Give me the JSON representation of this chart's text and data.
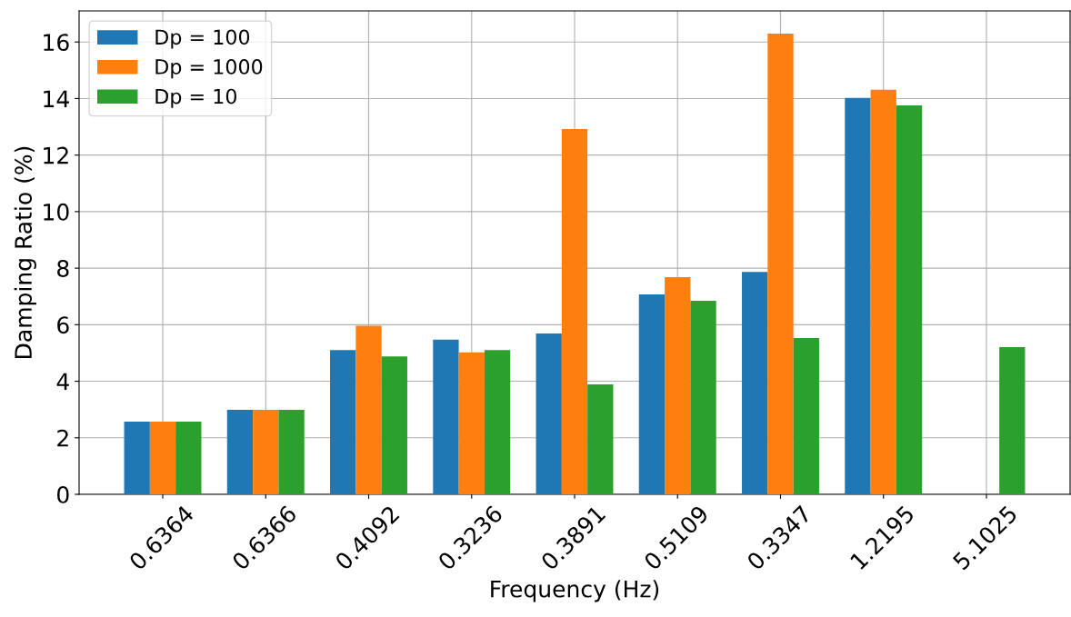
{
  "chart_data": {
    "type": "bar",
    "xlabel": "Frequency (Hz)",
    "ylabel": "Damping Ratio (%)",
    "categories": [
      "0.6364",
      "0.6366",
      "0.4092",
      "0.3236",
      "0.3891",
      "0.5109",
      "0.3347",
      "1.2195",
      "5.1025"
    ],
    "series": [
      {
        "name": "Dp = 100",
        "color": "#1f77b4",
        "values": [
          2.57,
          2.99,
          5.1,
          5.47,
          5.69,
          7.07,
          7.87,
          14.02,
          null
        ]
      },
      {
        "name": "Dp = 1000",
        "color": "#ff7f0e",
        "values": [
          2.57,
          2.99,
          5.96,
          5.02,
          12.92,
          7.68,
          16.3,
          14.31,
          null
        ]
      },
      {
        "name": "Dp = 10",
        "color": "#2ca02c",
        "values": [
          2.57,
          2.99,
          4.88,
          5.1,
          3.89,
          6.85,
          5.53,
          13.76,
          5.21
        ]
      }
    ],
    "ylim": [
      0,
      17.1
    ],
    "yticks": [
      0,
      2,
      4,
      6,
      8,
      10,
      12,
      14,
      16
    ],
    "grid": true,
    "legend": "top left"
  }
}
